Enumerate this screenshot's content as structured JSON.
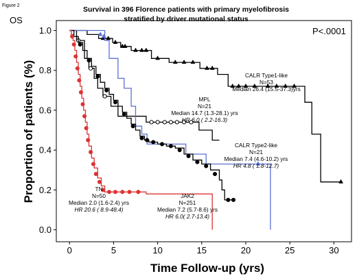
{
  "figure_label": "Figure 2",
  "panel_label": "OS",
  "pvalue": "P<.0001",
  "chart_data": {
    "type": "line",
    "title": [
      "Survival in 396 Florence patients with primary myelofibrosis",
      "stratified by driver mutational status"
    ],
    "xlabel": "Time Follow-up (yrs)",
    "ylabel": "Proportion of patients (%)",
    "xlim": [
      -1.5,
      32
    ],
    "ylim": [
      -0.06,
      1.05
    ],
    "xticks": [
      0,
      5,
      10,
      15,
      20,
      25,
      30
    ],
    "yticks": [
      0.0,
      0.2,
      0.4,
      0.6,
      0.8,
      1.0
    ],
    "series": [
      {
        "name": "CALR Type1-like",
        "color": "#000000",
        "censor_marker": "triangle",
        "annotation": [
          "CALR Type1-like",
          "N=53",
          "Median 26.4 (15.5-37.3)yrs"
        ],
        "points": [
          [
            0,
            1.0
          ],
          [
            1.2,
            1.0
          ],
          [
            2.0,
            0.98
          ],
          [
            2.8,
            0.98
          ],
          [
            3.3,
            0.96
          ],
          [
            4.5,
            0.96
          ],
          [
            4.9,
            0.94
          ],
          [
            5.5,
            0.94
          ],
          [
            5.8,
            0.92
          ],
          [
            6.7,
            0.92
          ],
          [
            7.0,
            0.9
          ],
          [
            9.0,
            0.9
          ],
          [
            9.3,
            0.86
          ],
          [
            11.0,
            0.86
          ],
          [
            11.3,
            0.84
          ],
          [
            14.5,
            0.84
          ],
          [
            14.8,
            0.81
          ],
          [
            16.5,
            0.81
          ],
          [
            16.8,
            0.78
          ],
          [
            17.8,
            0.78
          ],
          [
            18.0,
            0.72
          ],
          [
            26.5,
            0.72
          ],
          [
            26.7,
            0.64
          ],
          [
            27.2,
            0.64
          ],
          [
            27.5,
            0.48
          ],
          [
            28.2,
            0.48
          ],
          [
            28.5,
            0.24
          ],
          [
            30.8,
            0.24
          ]
        ],
        "censored": [
          [
            3.8,
            0.96
          ],
          [
            4.4,
            0.96
          ],
          [
            5.2,
            0.94
          ],
          [
            6.0,
            0.92
          ],
          [
            6.3,
            0.92
          ],
          [
            7.5,
            0.9
          ],
          [
            8.2,
            0.9
          ],
          [
            8.7,
            0.9
          ],
          [
            10.0,
            0.86
          ],
          [
            12.0,
            0.84
          ],
          [
            13.0,
            0.84
          ],
          [
            14.0,
            0.84
          ],
          [
            15.6,
            0.81
          ],
          [
            16.2,
            0.81
          ],
          [
            18.5,
            0.72
          ],
          [
            19.2,
            0.72
          ],
          [
            20.0,
            0.72
          ],
          [
            21.0,
            0.72
          ],
          [
            22.5,
            0.72
          ],
          [
            23.5,
            0.72
          ],
          [
            24.5,
            0.72
          ],
          [
            25.5,
            0.72
          ],
          [
            30.8,
            0.24
          ]
        ]
      },
      {
        "name": "MPL",
        "color": "#000000",
        "censor_marker": "open-circle",
        "annotation": [
          "MPL",
          "N=21",
          "Median 14.7 (1.3-28.1) yrs",
          "HR 6.0 ( 2.2-16.3)"
        ],
        "points": [
          [
            0,
            1.0
          ],
          [
            0.5,
            1.0
          ],
          [
            0.8,
            0.95
          ],
          [
            1.5,
            0.95
          ],
          [
            1.7,
            0.86
          ],
          [
            2.0,
            0.86
          ],
          [
            2.2,
            0.81
          ],
          [
            2.6,
            0.81
          ],
          [
            2.8,
            0.76
          ],
          [
            3.0,
            0.76
          ],
          [
            3.2,
            0.71
          ],
          [
            3.6,
            0.71
          ],
          [
            3.8,
            0.67
          ],
          [
            4.5,
            0.67
          ],
          [
            4.7,
            0.62
          ],
          [
            5.3,
            0.62
          ],
          [
            5.5,
            0.57
          ],
          [
            8.5,
            0.57
          ],
          [
            8.7,
            0.54
          ],
          [
            14.4,
            0.54
          ],
          [
            14.7,
            0.5
          ],
          [
            16.0,
            0.5
          ],
          [
            16.2,
            0.45
          ],
          [
            17.0,
            0.45
          ]
        ],
        "censored": [
          [
            1.0,
            0.95
          ],
          [
            2.4,
            0.81
          ],
          [
            4.0,
            0.67
          ],
          [
            9.3,
            0.54
          ],
          [
            10.0,
            0.54
          ],
          [
            10.8,
            0.54
          ],
          [
            11.5,
            0.54
          ],
          [
            12.2,
            0.54
          ],
          [
            13.0,
            0.54
          ],
          [
            13.8,
            0.54
          ]
        ]
      },
      {
        "name": "CALR Type2-like",
        "color": "#5b6fd6",
        "censor_marker": "triangle",
        "annotation": [
          "CALR Type2-like",
          "N=21",
          "Median 7.4 (4.6-10.2) yrs",
          "HR 4.8 ( 1.8-12.7)"
        ],
        "points": [
          [
            0,
            1.0
          ],
          [
            3.8,
            1.0
          ],
          [
            4.0,
            0.95
          ],
          [
            4.3,
            0.95
          ],
          [
            4.5,
            0.86
          ],
          [
            5.2,
            0.86
          ],
          [
            5.5,
            0.76
          ],
          [
            6.0,
            0.76
          ],
          [
            6.2,
            0.71
          ],
          [
            6.8,
            0.71
          ],
          [
            7.0,
            0.62
          ],
          [
            7.3,
            0.62
          ],
          [
            7.5,
            0.52
          ],
          [
            8.0,
            0.52
          ],
          [
            8.2,
            0.48
          ],
          [
            8.6,
            0.48
          ],
          [
            8.8,
            0.43
          ],
          [
            13.0,
            0.43
          ],
          [
            13.2,
            0.38
          ],
          [
            15.3,
            0.38
          ],
          [
            15.5,
            0.33
          ],
          [
            22.8,
            0.33
          ],
          [
            22.8,
            0.0
          ]
        ],
        "censored": [
          [
            3.5,
            0.98
          ],
          [
            3.9,
            0.97
          ],
          [
            21.4,
            0.33
          ]
        ]
      },
      {
        "name": "JAK2",
        "color": "#000000",
        "censor_marker": "filled-circle",
        "annotation": [
          "JAK2",
          "N=251",
          "Median 7.2 (5.7-8.6) yrs",
          "HR 6.0( 2.7-13.4)"
        ],
        "points": [
          [
            0,
            1.0
          ],
          [
            0.5,
            0.97
          ],
          [
            1.0,
            0.94
          ],
          [
            1.5,
            0.9
          ],
          [
            2.0,
            0.86
          ],
          [
            2.5,
            0.82
          ],
          [
            3.0,
            0.78
          ],
          [
            3.5,
            0.74
          ],
          [
            4.0,
            0.71
          ],
          [
            4.5,
            0.68
          ],
          [
            5.0,
            0.65
          ],
          [
            5.5,
            0.62
          ],
          [
            6.0,
            0.59
          ],
          [
            6.5,
            0.56
          ],
          [
            7.0,
            0.53
          ],
          [
            7.5,
            0.5
          ],
          [
            8.0,
            0.47
          ],
          [
            8.5,
            0.45
          ],
          [
            9.0,
            0.44
          ],
          [
            10.0,
            0.43
          ],
          [
            11.0,
            0.42
          ],
          [
            12.0,
            0.41
          ],
          [
            13.0,
            0.38
          ],
          [
            14.0,
            0.35
          ],
          [
            15.0,
            0.33
          ],
          [
            16.0,
            0.3
          ],
          [
            17.0,
            0.25
          ],
          [
            17.3,
            0.2
          ],
          [
            17.6,
            0.15
          ],
          [
            18.6,
            0.15
          ]
        ],
        "censored": [
          [
            1.2,
            0.93
          ],
          [
            2.2,
            0.85
          ],
          [
            3.2,
            0.77
          ],
          [
            4.2,
            0.7
          ],
          [
            5.2,
            0.64
          ],
          [
            6.2,
            0.58
          ],
          [
            7.2,
            0.52
          ],
          [
            8.2,
            0.46
          ],
          [
            8.8,
            0.45
          ],
          [
            9.5,
            0.44
          ],
          [
            10.5,
            0.43
          ],
          [
            11.5,
            0.42
          ],
          [
            12.5,
            0.4
          ],
          [
            13.5,
            0.37
          ],
          [
            14.5,
            0.34
          ],
          [
            15.5,
            0.32
          ],
          [
            16.5,
            0.28
          ],
          [
            18.0,
            0.15
          ],
          [
            18.6,
            0.15
          ]
        ]
      },
      {
        "name": "TN",
        "color": "#dd3333",
        "censor_marker": "filled-circle",
        "annotation": [
          "TN",
          "N=50",
          "Median 2.0 (1.6-2.4) yrs",
          "HR 20.6 ( 8.9-48.4)"
        ],
        "points": [
          [
            0,
            1.0
          ],
          [
            0.2,
            0.98
          ],
          [
            0.4,
            0.95
          ],
          [
            0.6,
            0.9
          ],
          [
            0.8,
            0.84
          ],
          [
            1.0,
            0.78
          ],
          [
            1.2,
            0.72
          ],
          [
            1.4,
            0.66
          ],
          [
            1.6,
            0.6
          ],
          [
            1.8,
            0.54
          ],
          [
            2.0,
            0.48
          ],
          [
            2.2,
            0.42
          ],
          [
            2.5,
            0.36
          ],
          [
            2.8,
            0.31
          ],
          [
            3.2,
            0.26
          ],
          [
            3.6,
            0.22
          ],
          [
            4.0,
            0.19
          ],
          [
            8.5,
            0.19
          ],
          [
            8.7,
            0.18
          ],
          [
            16.2,
            0.18
          ],
          [
            16.2,
            0.0
          ]
        ],
        "censored": [
          [
            0.3,
            0.97
          ],
          [
            0.5,
            0.93
          ],
          [
            0.7,
            0.87
          ],
          [
            0.9,
            0.81
          ],
          [
            1.1,
            0.75
          ],
          [
            1.3,
            0.69
          ],
          [
            1.5,
            0.63
          ],
          [
            1.7,
            0.57
          ],
          [
            1.9,
            0.51
          ],
          [
            2.1,
            0.45
          ],
          [
            2.4,
            0.39
          ],
          [
            2.7,
            0.33
          ],
          [
            3.0,
            0.28
          ],
          [
            3.4,
            0.24
          ],
          [
            3.8,
            0.2
          ],
          [
            4.5,
            0.19
          ],
          [
            5.2,
            0.19
          ],
          [
            6.0,
            0.19
          ],
          [
            6.8,
            0.19
          ],
          [
            7.8,
            0.19
          ]
        ]
      }
    ]
  }
}
